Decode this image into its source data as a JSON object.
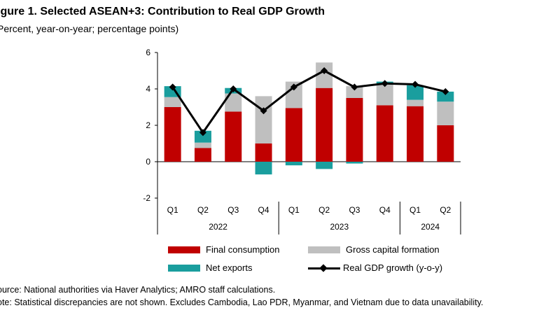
{
  "title": "igure 1. Selected ASEAN+3: Contribution to Real GDP Growth",
  "subtitle": "Percent, year-on-year; percentage points)",
  "source": "ource: National authorities via Haver Analytics; AMRO staff calculations.",
  "note": "ote: Statistical discrepancies are not shown. Excludes Cambodia, Lao PDR, Myanmar, and Vietnam due to data unavailability.",
  "colors": {
    "final_consumption": "#c00000",
    "gross_capital_formation": "#bfbfbf",
    "net_exports": "#1a9e9e",
    "real_gdp_growth": "#000000"
  },
  "chart_data": {
    "type": "bar",
    "stacked": true,
    "categories": [
      "Q1",
      "Q2",
      "Q3",
      "Q4",
      "Q1",
      "Q2",
      "Q3",
      "Q4",
      "Q1",
      "Q2"
    ],
    "years": [
      {
        "label": "2022",
        "count": 4
      },
      {
        "label": "2023",
        "count": 4
      },
      {
        "label": "2024",
        "count": 2
      }
    ],
    "ylim": [
      -2,
      6
    ],
    "yticks": [
      "6",
      "4",
      "2",
      "0",
      "-2"
    ],
    "ytick_values": [
      6,
      4,
      2,
      0,
      -2
    ],
    "grid": false,
    "legend_position": "bottom",
    "series": [
      {
        "name": "Final consumption",
        "kind": "bar",
        "values": [
          3.0,
          0.75,
          2.75,
          1.0,
          2.95,
          4.05,
          3.5,
          3.1,
          3.05,
          2.0
        ]
      },
      {
        "name": "Gross capital formation",
        "kind": "bar",
        "values": [
          0.55,
          0.3,
          1.0,
          2.6,
          1.45,
          1.4,
          0.65,
          1.15,
          0.35,
          1.3
        ]
      },
      {
        "name": "Net exports",
        "kind": "bar",
        "values": [
          0.6,
          0.65,
          0.3,
          -0.7,
          -0.2,
          -0.4,
          -0.1,
          0.15,
          0.8,
          0.55
        ]
      },
      {
        "name": "Real GDP growth (y-o-y)",
        "kind": "line",
        "values": [
          4.1,
          1.6,
          4.0,
          2.8,
          4.1,
          5.0,
          4.1,
          4.3,
          4.25,
          3.85
        ]
      }
    ]
  }
}
